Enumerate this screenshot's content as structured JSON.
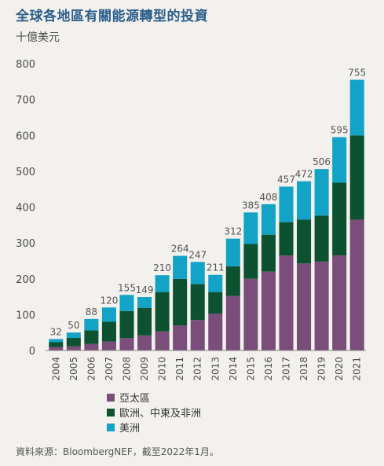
{
  "title": "全球各地區有關能源轉型的投資",
  "unit_label": "十億美元",
  "source": "資料來源：BloombergNEF，截至2022年1月。",
  "chart_data": {
    "type": "bar",
    "stacked": true,
    "categories": [
      "2004",
      "2005",
      "2006",
      "2007",
      "2008",
      "2009",
      "2010",
      "2011",
      "2012",
      "2013",
      "2014",
      "2015",
      "2016",
      "2017",
      "2018",
      "2019",
      "2020",
      "2021"
    ],
    "totals": [
      32,
      50,
      88,
      120,
      155,
      149,
      210,
      264,
      247,
      211,
      312,
      385,
      408,
      457,
      472,
      506,
      595,
      755
    ],
    "series": [
      {
        "name": "亞太區",
        "color": "#7a4d7b",
        "values": [
          10,
          12,
          18,
          25,
          35,
          42,
          53,
          70,
          85,
          103,
          152,
          200,
          220,
          265,
          243,
          248,
          265,
          365
        ]
      },
      {
        "name": "歐洲、中東及非洲",
        "color": "#0c5230",
        "values": [
          13,
          23,
          38,
          55,
          75,
          77,
          110,
          130,
          100,
          60,
          83,
          97,
          103,
          93,
          122,
          128,
          203,
          235
        ]
      },
      {
        "name": "美洲",
        "color": "#13a3c7",
        "values": [
          9,
          15,
          32,
          40,
          45,
          30,
          47,
          64,
          62,
          48,
          77,
          88,
          85,
          99,
          107,
          130,
          127,
          155
        ]
      }
    ],
    "yticks": [
      0,
      100,
      200,
      300,
      400,
      500,
      600,
      700,
      800
    ],
    "ylim": [
      0,
      800
    ],
    "grid": false,
    "legend_position": "bottom"
  }
}
